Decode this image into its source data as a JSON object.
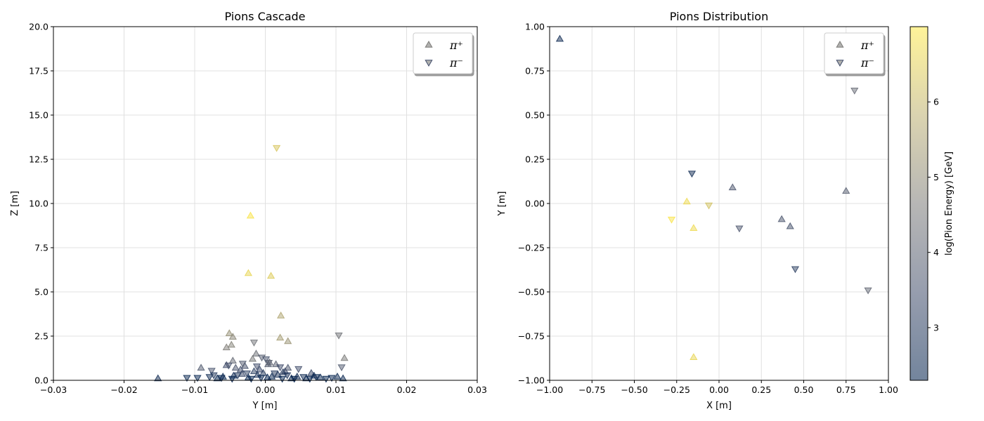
{
  "chart_data": [
    {
      "type": "scatter",
      "title": "Pions Cascade",
      "xlabel": "Y [m]",
      "ylabel": "Z [m]",
      "xlim": [
        -0.03,
        0.03
      ],
      "ylim": [
        0,
        20
      ],
      "xticks": [
        "−0.03",
        "−0.02",
        "−0.01",
        "0.00",
        "0.01",
        "0.02",
        "0.03"
      ],
      "xtick_values": [
        -0.03,
        -0.02,
        -0.01,
        0.0,
        0.01,
        0.02,
        0.03
      ],
      "yticks": [
        "0.0",
        "2.5",
        "5.0",
        "7.5",
        "10.0",
        "12.5",
        "15.0",
        "17.5",
        "20.0"
      ],
      "ytick_values": [
        0,
        2.5,
        5,
        7.5,
        10,
        12.5,
        15,
        17.5,
        20
      ],
      "grid": true,
      "legend": {
        "placement": "upper-right",
        "entries": [
          "π⁺",
          "π⁻"
        ]
      },
      "series": [
        {
          "name": "π⁺",
          "marker": "triangle-up",
          "points": [
            [
              -0.0152,
              0.1,
              2.6
            ],
            [
              0.011,
              0.1,
              2.5
            ],
            [
              -0.0091,
              0.7,
              3.8
            ],
            [
              -0.0055,
              0.85,
              3.5
            ],
            [
              -0.0051,
              2.65,
              5.1
            ],
            [
              -0.0048,
              2.0,
              4.8
            ],
            [
              -0.0046,
              2.45,
              4.9
            ],
            [
              -0.0055,
              1.85,
              4.7
            ],
            [
              -0.0046,
              1.1,
              4.2
            ],
            [
              -0.0018,
              1.2,
              4.5
            ],
            [
              -0.0013,
              1.5,
              4.3
            ],
            [
              -0.0021,
              9.3,
              6.9
            ],
            [
              -0.0024,
              6.05,
              6.6
            ],
            [
              0.0008,
              5.9,
              6.4
            ],
            [
              0.0022,
              3.65,
              5.6
            ],
            [
              0.0021,
              2.4,
              5.4
            ],
            [
              0.0032,
              2.2,
              5.2
            ],
            [
              0.0112,
              1.25,
              4.6
            ],
            [
              0.0015,
              0.9,
              4.0
            ],
            [
              0.0006,
              1.0,
              4.1
            ],
            [
              -0.0029,
              0.8,
              3.6
            ],
            [
              -0.0035,
              0.6,
              3.5
            ],
            [
              0.0028,
              0.5,
              3.4
            ],
            [
              0.0032,
              0.7,
              3.7
            ],
            [
              0.0065,
              0.4,
              3.3
            ],
            [
              -0.0042,
              0.7,
              3.7
            ],
            [
              -0.0008,
              0.6,
              3.3
            ],
            [
              0.0004,
              0.9,
              3.9
            ],
            [
              -0.0003,
              0.4,
              3.0
            ],
            [
              -0.006,
              0.2,
              2.5
            ],
            [
              0.0078,
              0.15,
              2.4
            ],
            [
              -0.0011,
              0.3,
              2.8
            ],
            [
              0.0018,
              0.3,
              2.9
            ],
            [
              -0.0033,
              0.35,
              3.2
            ],
            [
              0.0045,
              0.2,
              2.6
            ],
            [
              0.0009,
              0.2,
              2.5
            ],
            [
              -0.0068,
              0.1,
              2.3
            ],
            [
              0.0058,
              0.1,
              2.4
            ],
            [
              0.0025,
              0.45,
              3.0
            ],
            [
              -0.0016,
              0.5,
              3.1
            ],
            [
              0.0003,
              0.15,
              2.3
            ],
            [
              -0.0024,
              0.15,
              2.4
            ],
            [
              0.0037,
              0.1,
              2.3
            ],
            [
              -0.0045,
              0.25,
              2.7
            ],
            [
              0.0069,
              0.25,
              2.6
            ],
            [
              0.0102,
              0.2,
              2.5
            ]
          ]
        },
        {
          "name": "π⁻",
          "marker": "triangle-down",
          "points": [
            [
              0.0016,
              13.15,
              6.3
            ],
            [
              0.0104,
              2.55,
              4.4
            ],
            [
              -0.0016,
              2.15,
              4.4
            ],
            [
              0.0108,
              0.75,
              3.8
            ],
            [
              -0.0005,
              1.3,
              3.9
            ],
            [
              0.0001,
              1.2,
              3.6
            ],
            [
              0.0005,
              1.0,
              4.0
            ],
            [
              -0.0032,
              0.95,
              3.8
            ],
            [
              -0.0052,
              0.85,
              3.6
            ],
            [
              0.0047,
              0.65,
              3.5
            ],
            [
              -0.0076,
              0.55,
              3.6
            ],
            [
              -0.0111,
              0.15,
              2.5
            ],
            [
              -0.0096,
              0.15,
              2.4
            ],
            [
              -0.0079,
              0.2,
              2.6
            ],
            [
              -0.0073,
              0.3,
              2.9
            ],
            [
              -0.0012,
              0.8,
              3.5
            ],
            [
              0.0021,
              0.75,
              3.4
            ],
            [
              -0.0026,
              0.4,
              3.1
            ],
            [
              0.0013,
              0.4,
              3.0
            ],
            [
              0.0031,
              0.3,
              2.8
            ],
            [
              -0.0039,
              0.3,
              2.9
            ],
            [
              0.0054,
              0.2,
              2.6
            ],
            [
              0.0072,
              0.2,
              2.5
            ],
            [
              0.0094,
              0.15,
              2.4
            ],
            [
              -0.0006,
              0.15,
              2.3
            ],
            [
              0.0024,
              0.1,
              2.3
            ],
            [
              -0.002,
              0.1,
              2.3
            ],
            [
              0.0041,
              0.1,
              2.3
            ],
            [
              -0.0047,
              0.1,
              2.3
            ],
            [
              0.0063,
              0.1,
              2.3
            ],
            [
              0.0086,
              0.1,
              2.3
            ],
            [
              -0.0062,
              0.15,
              2.4
            ]
          ]
        }
      ]
    },
    {
      "type": "scatter",
      "title": "Pions Distribution",
      "xlabel": "X [m]",
      "ylabel": "Y [m]",
      "xlim": [
        -1.0,
        1.0
      ],
      "ylim": [
        -1.0,
        1.0
      ],
      "xticks": [
        "−1.00",
        "−0.75",
        "−0.50",
        "−0.25",
        "0.00",
        "0.25",
        "0.50",
        "0.75",
        "1.00"
      ],
      "xtick_values": [
        -1.0,
        -0.75,
        -0.5,
        -0.25,
        0.0,
        0.25,
        0.5,
        0.75,
        1.0
      ],
      "yticks": [
        "−1.00",
        "−0.75",
        "−0.50",
        "−0.25",
        "0.00",
        "0.25",
        "0.50",
        "0.75",
        "1.00"
      ],
      "ytick_values": [
        -1.0,
        -0.75,
        -0.5,
        -0.25,
        0.0,
        0.25,
        0.5,
        0.75,
        1.0
      ],
      "grid": true,
      "legend": {
        "placement": "upper-right",
        "entries": [
          "π⁺",
          "π⁻"
        ]
      },
      "colorbar": {
        "label": "log(Pion Energy) [GeV]",
        "ticks": [
          "3",
          "4",
          "5",
          "6"
        ],
        "tick_values": [
          3,
          4,
          5,
          6
        ],
        "range": [
          2.3,
          7.0
        ],
        "colormap": "cividis"
      },
      "series": [
        {
          "name": "π⁺",
          "marker": "triangle-up",
          "points": [
            [
              -0.94,
              0.93,
              2.6
            ],
            [
              0.08,
              0.09,
              3.7
            ],
            [
              0.37,
              -0.09,
              3.7
            ],
            [
              0.42,
              -0.13,
              3.6
            ],
            [
              0.75,
              0.07,
              3.9
            ],
            [
              -0.19,
              0.01,
              6.7
            ],
            [
              -0.15,
              -0.14,
              6.7
            ],
            [
              -0.15,
              -0.87,
              6.6
            ]
          ]
        },
        {
          "name": "π⁻",
          "marker": "triangle-down",
          "points": [
            [
              -0.16,
              0.17,
              2.6
            ],
            [
              0.12,
              -0.14,
              3.7
            ],
            [
              0.45,
              -0.37,
              3.1
            ],
            [
              0.8,
              0.64,
              4.2
            ],
            [
              0.88,
              -0.49,
              4.1
            ],
            [
              -0.28,
              -0.09,
              6.9
            ],
            [
              -0.06,
              -0.01,
              6.2
            ]
          ]
        }
      ]
    }
  ]
}
